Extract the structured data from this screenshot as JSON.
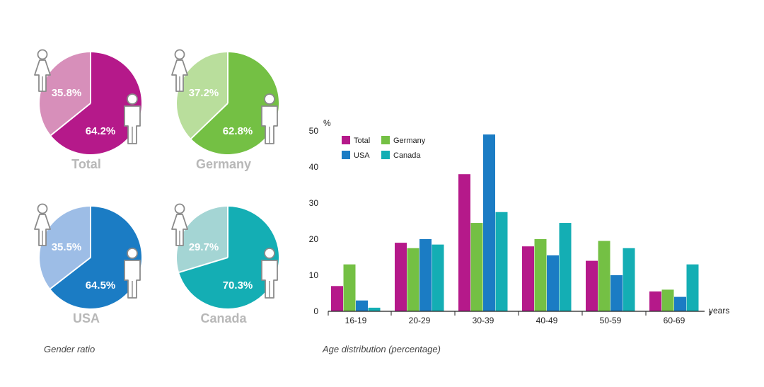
{
  "chart_data": [
    {
      "type": "pie",
      "caption": "Gender ratio",
      "pies": [
        {
          "name": "Total",
          "female": 35.8,
          "male": 64.2,
          "female_label": "35.8%",
          "male_label": "64.2%",
          "female_color": "#d78fba",
          "male_color": "#b5198a"
        },
        {
          "name": "Germany",
          "female": 37.2,
          "male": 62.8,
          "female_label": "37.2%",
          "male_label": "62.8%",
          "female_color": "#b9de9c",
          "male_color": "#74c044"
        },
        {
          "name": "USA",
          "female": 35.5,
          "male": 64.5,
          "female_label": "35.5%",
          "male_label": "64.5%",
          "female_color": "#9dbde6",
          "male_color": "#1b7cc4"
        },
        {
          "name": "Canada",
          "female": 29.7,
          "male": 70.3,
          "female_label": "29.7%",
          "male_label": "70.3%",
          "female_color": "#a4d5d4",
          "male_color": "#14aeb4"
        }
      ],
      "icons": [
        "female-icon",
        "male-icon"
      ]
    },
    {
      "type": "bar",
      "caption": "Age distribution (percentage)",
      "ylabel": "%",
      "xlabel": "years",
      "ylim": [
        0,
        50
      ],
      "yticks": [
        "0",
        "10",
        "20",
        "30",
        "40",
        "50"
      ],
      "categories": [
        "16-19",
        "20-29",
        "30-39",
        "40-49",
        "50-59",
        "60-69"
      ],
      "series": [
        {
          "name": "Total",
          "color": "#b5198a",
          "values": [
            7,
            19,
            38,
            18,
            14,
            5.5
          ]
        },
        {
          "name": "Germany",
          "color": "#74c044",
          "values": [
            13,
            17.5,
            24.5,
            20,
            19.5,
            6
          ]
        },
        {
          "name": "USA",
          "color": "#1b7cc4",
          "values": [
            3,
            20,
            49,
            15.5,
            10,
            4
          ]
        },
        {
          "name": "Canada",
          "color": "#14aeb4",
          "values": [
            1,
            18.5,
            27.5,
            24.5,
            17.5,
            13
          ]
        }
      ],
      "grid": false,
      "legend": "top-left"
    }
  ]
}
